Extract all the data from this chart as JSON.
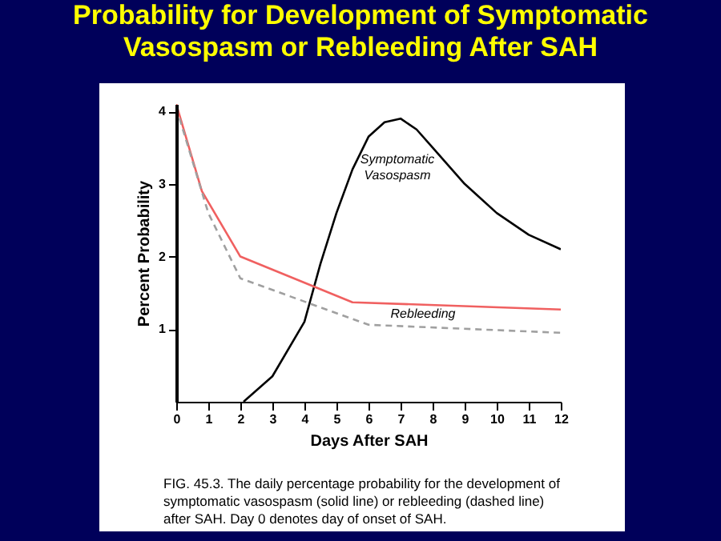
{
  "chart_data": {
    "type": "line",
    "title": "Probability for Development of Symptomatic Vasospasm or Rebleeding After SAH",
    "xlabel": "Days After SAH",
    "ylabel": "Percent Probability",
    "xlim": [
      0,
      12
    ],
    "xticks": [
      0,
      1,
      2,
      3,
      4,
      5,
      6,
      7,
      8,
      9,
      10,
      11,
      12
    ],
    "ylim": [
      0,
      4.1
    ],
    "yticks": [
      1,
      2,
      3,
      4
    ],
    "marker": "none",
    "series": [
      {
        "name": "Symptomatic Vasospasm",
        "color": "#000000",
        "line_style": "solid",
        "x": [
          2.1,
          3,
          4,
          4.5,
          5,
          5.5,
          6,
          6.5,
          7,
          7.5,
          8,
          9,
          10,
          11,
          12
        ],
        "values": [
          0,
          0.35,
          1.1,
          1.9,
          2.6,
          3.2,
          3.65,
          3.85,
          3.9,
          3.75,
          3.5,
          3.0,
          2.6,
          2.3,
          2.1
        ]
      },
      {
        "name": "Rebleeding",
        "color": "#f06060",
        "line_style": "solid",
        "x": [
          0,
          0.8,
          2,
          5.5,
          12
        ],
        "values": [
          4.1,
          2.9,
          2.0,
          1.37,
          1.27
        ]
      },
      {
        "color": "#a0a0a0",
        "line_style": "dashed",
        "x": [
          0,
          1,
          2,
          6,
          12
        ],
        "values": [
          4.05,
          2.6,
          1.7,
          1.06,
          0.95
        ]
      }
    ],
    "annotations": [
      "FIG. 45.3. The daily percentage probability for the development of symptomatic vasospasm (solid line) or rebleeding (dashed line) after SAH. Day 0 denotes day of onset of SAH."
    ]
  }
}
